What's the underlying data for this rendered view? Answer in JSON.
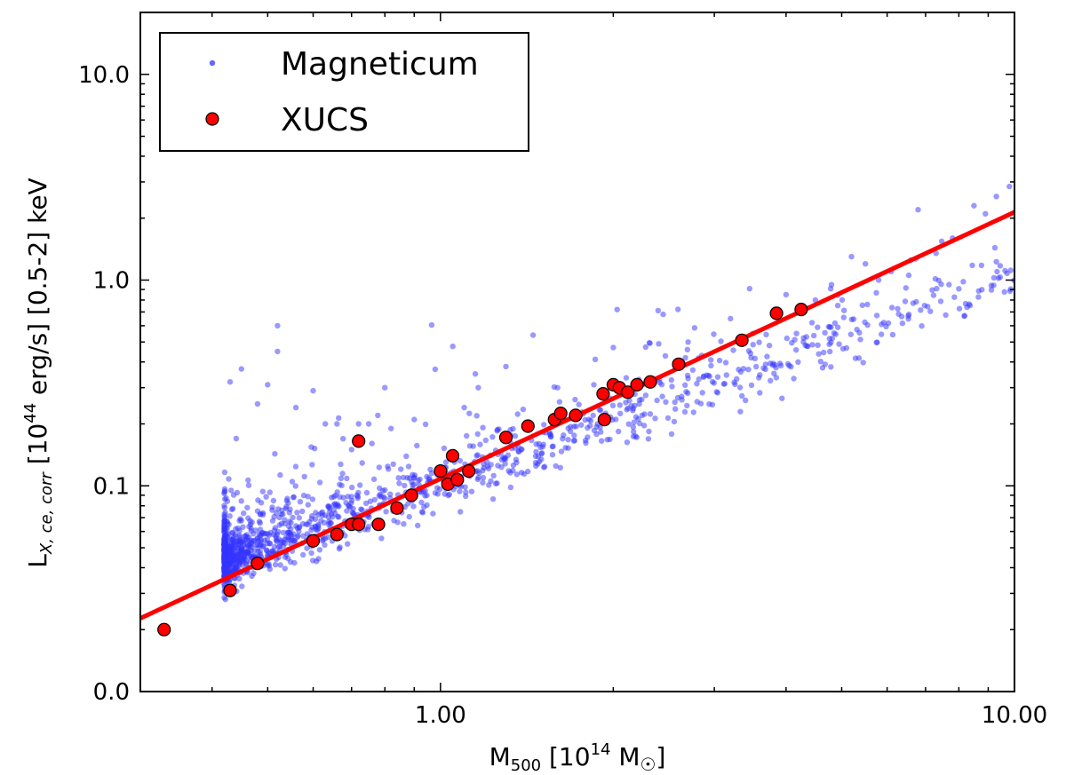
{
  "chart_data": {
    "type": "scatter",
    "x_scale": "log",
    "y_scale": "log",
    "xlim": [
      0.3,
      10.0
    ],
    "ylim": [
      0.01,
      20.0
    ],
    "x_ticks": [
      {
        "value": 1.0,
        "label": "1.00"
      },
      {
        "value": 10.0,
        "label": "10.00"
      }
    ],
    "y_ticks": [
      {
        "value": 0.01,
        "label": "0.0"
      },
      {
        "value": 0.1,
        "label": "0.1"
      },
      {
        "value": 1.0,
        "label": "1.0"
      },
      {
        "value": 10.0,
        "label": "10.0"
      }
    ],
    "xlabel": {
      "base": "M",
      "sub": "500",
      "rest": " [10",
      "sup": "14",
      "tail": " M",
      "sub2": "☉",
      "close": "]"
    },
    "ylabel": {
      "base": "L",
      "sub": "X, ce, corr",
      "mid": " [10",
      "sup": "44",
      "tail": " erg/s] [0.5-2] keV"
    },
    "legend": {
      "position": "top-left",
      "entries": [
        {
          "name": "Magneticum",
          "marker": "small-dot",
          "color": "#3333ff"
        },
        {
          "name": "XUCS",
          "marker": "circle",
          "color": "#ff0000"
        }
      ]
    },
    "series": [
      {
        "name": "Magneticum",
        "type": "scatter",
        "color": "#3333ff",
        "opacity": 0.5,
        "cloud": {
          "count": 1400,
          "x_min": 0.42,
          "x_max": 10.0,
          "slope": 1.0,
          "amp_at_1": 0.105,
          "seed": 7
        },
        "extra_points": [
          [
            0.43,
            0.32
          ],
          [
            0.45,
            0.37
          ],
          [
            0.48,
            0.25
          ],
          [
            0.52,
            0.45
          ],
          [
            0.52,
            0.6
          ],
          [
            0.5,
            0.31
          ],
          [
            0.56,
            0.24
          ],
          [
            0.6,
            0.29
          ],
          [
            0.63,
            0.2
          ],
          [
            0.66,
            0.2
          ],
          [
            0.7,
            0.15
          ],
          [
            0.72,
            0.2
          ],
          [
            0.75,
            0.2
          ],
          [
            0.8,
            0.3
          ],
          [
            0.82,
            0.19
          ],
          [
            0.9,
            0.21
          ],
          [
            1.1,
            0.24
          ],
          [
            1.15,
            0.35
          ],
          [
            1.3,
            0.38
          ],
          [
            1.45,
            0.54
          ],
          [
            1.6,
            0.3
          ],
          [
            1.85,
            0.31
          ],
          [
            2.0,
            0.47
          ],
          [
            2.4,
            0.49
          ],
          [
            2.7,
            0.5
          ],
          [
            3.2,
            0.65
          ],
          [
            3.5,
            0.55
          ],
          [
            4.0,
            0.85
          ],
          [
            4.5,
            0.8
          ],
          [
            4.8,
            0.95
          ],
          [
            5.2,
            1.3
          ],
          [
            5.5,
            1.2
          ],
          [
            5.8,
            1.0
          ],
          [
            6.1,
            1.1
          ],
          [
            6.6,
            1.25
          ],
          [
            7.3,
            1.35
          ],
          [
            7.8,
            1.6
          ],
          [
            8.5,
            2.3
          ],
          [
            8.9,
            2.1
          ],
          [
            9.3,
            2.55
          ],
          [
            9.8,
            2.85
          ]
        ]
      },
      {
        "name": "XUCS",
        "type": "scatter",
        "color": "#ff0000",
        "edge_color": "#000000",
        "points": [
          [
            0.33,
            0.02
          ],
          [
            0.43,
            0.031
          ],
          [
            0.48,
            0.042
          ],
          [
            0.6,
            0.054
          ],
          [
            0.66,
            0.058
          ],
          [
            0.7,
            0.065
          ],
          [
            0.72,
            0.065
          ],
          [
            0.72,
            0.165
          ],
          [
            0.78,
            0.065
          ],
          [
            0.84,
            0.078
          ],
          [
            0.89,
            0.09
          ],
          [
            1.0,
            0.118
          ],
          [
            1.03,
            0.102
          ],
          [
            1.05,
            0.14
          ],
          [
            1.07,
            0.107
          ],
          [
            1.12,
            0.118
          ],
          [
            1.3,
            0.172
          ],
          [
            1.42,
            0.195
          ],
          [
            1.58,
            0.21
          ],
          [
            1.62,
            0.225
          ],
          [
            1.72,
            0.22
          ],
          [
            1.92,
            0.28
          ],
          [
            1.93,
            0.21
          ],
          [
            2.0,
            0.31
          ],
          [
            2.05,
            0.3
          ],
          [
            2.12,
            0.285
          ],
          [
            2.2,
            0.31
          ],
          [
            2.32,
            0.32
          ],
          [
            2.6,
            0.39
          ],
          [
            3.35,
            0.51
          ],
          [
            3.85,
            0.69
          ],
          [
            4.25,
            0.72
          ]
        ]
      },
      {
        "name": "fit",
        "type": "line",
        "color": "#ff0000",
        "points": [
          [
            0.3,
            0.0227
          ],
          [
            10.0,
            2.14
          ]
        ]
      }
    ]
  }
}
